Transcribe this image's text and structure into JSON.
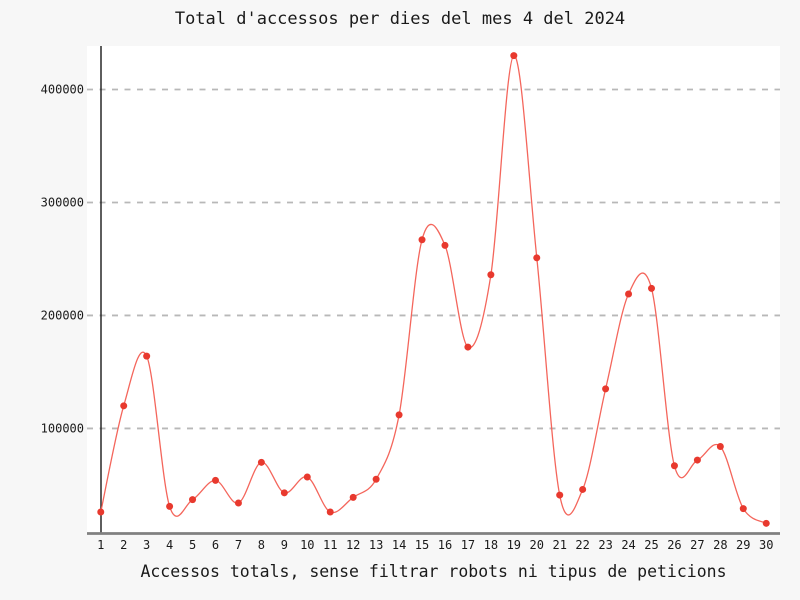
{
  "chart_data": {
    "type": "line",
    "title": "Total d'accessos per dies del mes 4 del 2024",
    "xlabel": "Accessos totals, sense filtrar robots ni tipus de peticions",
    "ylabel": "",
    "x": [
      1,
      2,
      3,
      4,
      5,
      6,
      7,
      8,
      9,
      10,
      11,
      12,
      13,
      14,
      15,
      16,
      17,
      18,
      19,
      20,
      21,
      22,
      23,
      24,
      25,
      26,
      27,
      28,
      29,
      30
    ],
    "series": [
      {
        "name": "accessos-totals",
        "values": [
          26000,
          120000,
          164000,
          31000,
          37000,
          54000,
          34000,
          70000,
          43000,
          57000,
          26000,
          39000,
          55000,
          112000,
          267000,
          262000,
          172000,
          236000,
          430000,
          251000,
          41000,
          46000,
          135000,
          219000,
          224000,
          67000,
          72000,
          84000,
          29000,
          16000
        ]
      }
    ],
    "yticks": [
      100000,
      200000,
      300000,
      400000
    ],
    "ylim": [
      7000,
      438500
    ],
    "xlim": [
      0.4,
      30.6
    ],
    "grid": "horizontal-dashed",
    "legend": "none",
    "smooth": "spline",
    "colors": {
      "page_bg": "#f7f7f7",
      "plot_bg": "#ffffff",
      "grid": "#b8b8b8",
      "y_axis": "#1a1a1a",
      "x_axis": "#808080",
      "line": "#f4665c",
      "marker": "#e8392e"
    }
  }
}
